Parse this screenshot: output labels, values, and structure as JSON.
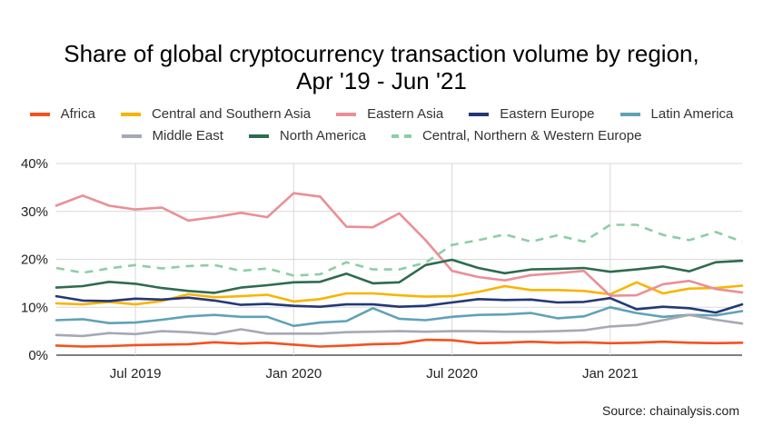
{
  "chart_data": {
    "type": "line",
    "title": "Share of global cryptocurrency transaction volume by region,",
    "subtitle": "Apr '19 - Jun '21",
    "source": "Source: chainalysis.com",
    "x": [
      "2019-04",
      "2019-05",
      "2019-06",
      "2019-07",
      "2019-08",
      "2019-09",
      "2019-10",
      "2019-11",
      "2019-12",
      "2020-01",
      "2020-02",
      "2020-03",
      "2020-04",
      "2020-05",
      "2020-06",
      "2020-07",
      "2020-08",
      "2020-09",
      "2020-10",
      "2020-11",
      "2020-12",
      "2021-01",
      "2021-02",
      "2021-03",
      "2021-04",
      "2021-05",
      "2021-06"
    ],
    "x_ticks": [
      {
        "x": "2019-07",
        "label": "Jul 2019"
      },
      {
        "x": "2020-01",
        "label": "Jan 2020"
      },
      {
        "x": "2020-07",
        "label": "Jul 2020"
      },
      {
        "x": "2021-01",
        "label": "Jan 2021"
      }
    ],
    "y_ticks": [
      "0%",
      "10%",
      "20%",
      "30%",
      "40%"
    ],
    "ylim": [
      0,
      40
    ],
    "y_unit": "%",
    "grid": true,
    "legend_position": "top",
    "series": [
      {
        "name": "Africa",
        "color": "#f4511e",
        "dashed": false,
        "values": [
          2.0,
          1.8,
          1.9,
          2.1,
          2.2,
          2.3,
          2.7,
          2.4,
          2.6,
          2.2,
          1.8,
          2.0,
          2.3,
          2.4,
          3.2,
          3.1,
          2.5,
          2.6,
          2.8,
          2.6,
          2.7,
          2.5,
          2.6,
          2.8,
          2.6,
          2.5,
          2.6
        ]
      },
      {
        "name": "Central and Southern Asia",
        "color": "#f9b400",
        "dashed": false,
        "values": [
          10.8,
          10.6,
          11.1,
          10.6,
          11.3,
          12.7,
          12.1,
          12.3,
          12.6,
          11.2,
          11.7,
          12.9,
          12.9,
          12.5,
          12.2,
          12.3,
          13.2,
          14.4,
          13.6,
          13.6,
          13.4,
          12.7,
          15.2,
          12.9,
          13.9,
          14.0,
          14.5
        ]
      },
      {
        "name": "Eastern Asia",
        "color": "#ea8f96",
        "dashed": false,
        "values": [
          31.2,
          33.3,
          31.2,
          30.4,
          30.8,
          28.1,
          28.8,
          29.7,
          28.8,
          33.8,
          33.1,
          26.8,
          26.7,
          29.6,
          24.0,
          17.6,
          16.3,
          15.6,
          16.7,
          17.1,
          17.6,
          12.4,
          12.5,
          14.8,
          15.5,
          13.8,
          13.1
        ]
      },
      {
        "name": "Eastern Europe",
        "color": "#233876",
        "dashed": false,
        "values": [
          12.3,
          11.4,
          11.3,
          11.8,
          11.6,
          12.0,
          11.4,
          10.5,
          10.7,
          10.3,
          10.1,
          10.6,
          10.6,
          10.1,
          10.3,
          11.0,
          11.7,
          11.5,
          11.6,
          11.0,
          11.1,
          11.9,
          9.6,
          10.1,
          9.8,
          8.9,
          10.6
        ]
      },
      {
        "name": "Latin America",
        "color": "#5fa2b8",
        "dashed": false,
        "values": [
          7.3,
          7.5,
          6.7,
          6.8,
          7.4,
          8.1,
          8.4,
          8.0,
          8.0,
          6.1,
          6.8,
          7.1,
          9.8,
          7.6,
          7.3,
          8.0,
          8.4,
          8.5,
          8.8,
          7.7,
          8.1,
          10.0,
          8.8,
          8.0,
          8.4,
          8.3,
          9.2
        ]
      },
      {
        "name": "Middle East",
        "color": "#a6a8b4",
        "dashed": false,
        "values": [
          4.2,
          4.0,
          4.6,
          4.4,
          5.0,
          4.8,
          4.4,
          5.4,
          4.5,
          4.5,
          4.5,
          4.8,
          4.9,
          5.0,
          4.9,
          5.0,
          5.0,
          4.9,
          4.9,
          5.0,
          5.2,
          6.0,
          6.3,
          7.3,
          8.4,
          7.4,
          6.6
        ]
      },
      {
        "name": "North America",
        "color": "#2e6b4f",
        "dashed": false,
        "values": [
          14.1,
          14.4,
          15.3,
          14.9,
          14.0,
          13.4,
          13.0,
          14.1,
          14.6,
          15.2,
          15.3,
          17.0,
          15.0,
          15.2,
          18.8,
          19.9,
          18.2,
          17.1,
          17.9,
          18.0,
          18.2,
          17.4,
          17.9,
          18.5,
          17.5,
          19.4,
          19.7
        ]
      },
      {
        "name": "Central, Northern & Western Europe",
        "color": "#8dcda7",
        "dashed": true,
        "values": [
          18.2,
          17.2,
          18.1,
          18.8,
          18.1,
          18.6,
          18.8,
          17.6,
          18.1,
          16.6,
          16.9,
          19.4,
          17.9,
          17.9,
          19.3,
          23.0,
          24.0,
          25.2,
          23.7,
          25.0,
          23.7,
          27.2,
          27.2,
          25.1,
          24.0,
          25.7,
          23.7
        ]
      }
    ]
  }
}
